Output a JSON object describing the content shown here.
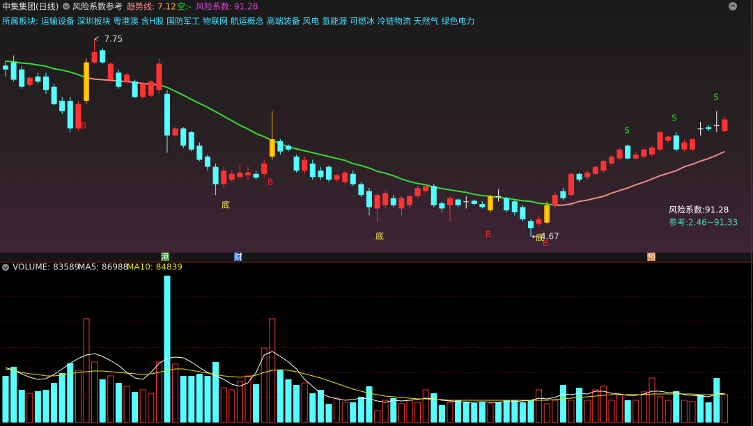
{
  "chart_data": {
    "type": "candlestick",
    "header": {
      "stock": "中集集团(日线)",
      "indicator": "风险系数参考",
      "trend_label": "趋势线:",
      "trend_value": 7.12,
      "short_label": "空:",
      "short_value": "-",
      "risk_label": "风险系数:",
      "risk_value": 91.28
    },
    "sectors": "所属板块: 运输设备 深圳板块 粤港澳 含H股 国防军工 物联网 航运概念 高端装备 风电 氢能源 可燃冰 冷链物流 天然气 绿色电力",
    "max_label": 7.75,
    "min_label": 4.67,
    "risk_panel": [
      "风险系数:91.28",
      "参考:2.46~91.33"
    ],
    "signals": [
      {
        "text": "B"
      },
      {
        "text": "B"
      },
      {
        "text": "B"
      },
      {
        "text": "B"
      },
      {
        "text": "底"
      },
      {
        "text": "底"
      },
      {
        "text": "底"
      },
      {
        "text": "S"
      },
      {
        "text": "S"
      },
      {
        "text": "S"
      }
    ],
    "axis_markers": [
      {
        "text": "港",
        "color": "#1e8c1e"
      },
      {
        "text": "财",
        "color": "#2060c0"
      },
      {
        "text": "预",
        "color": "#c86a1e"
      }
    ],
    "ylim": [
      4.43,
      7.93
    ],
    "up_color": "#ff3232",
    "down_color": "#54ffff",
    "highlight_color": "#ffcc00",
    "doji_color": "#ffffff",
    "highlight_candles": [
      10,
      33,
      60,
      67
    ],
    "candles": [
      [
        7.34,
        7.41,
        7.17,
        7.28
      ],
      [
        7.39,
        7.5,
        7.09,
        7.12
      ],
      [
        7.28,
        7.34,
        6.98,
        7.01
      ],
      [
        7.04,
        7.17,
        7.01,
        7.15
      ],
      [
        7.17,
        7.23,
        7.06,
        7.09
      ],
      [
        7.17,
        7.23,
        6.9,
        6.96
      ],
      [
        7.01,
        7.06,
        6.72,
        6.74
      ],
      [
        6.79,
        6.85,
        6.58,
        6.63
      ],
      [
        6.79,
        6.85,
        6.3,
        6.36
      ],
      [
        6.36,
        6.79,
        6.32,
        6.74
      ],
      [
        6.79,
        7.45,
        6.74,
        7.39
      ],
      [
        7.39,
        7.75,
        7.37,
        7.55
      ],
      [
        7.58,
        7.61,
        7.37,
        7.39
      ],
      [
        7.12,
        7.39,
        7.09,
        7.37
      ],
      [
        7.23,
        7.28,
        6.98,
        7.01
      ],
      [
        7.09,
        7.23,
        7.06,
        7.2
      ],
      [
        7.09,
        7.12,
        6.83,
        6.85
      ],
      [
        6.85,
        7.09,
        6.83,
        7.06
      ],
      [
        6.87,
        7.12,
        6.85,
        7.09
      ],
      [
        6.96,
        7.45,
        6.9,
        7.37
      ],
      [
        6.9,
        6.96,
        5.98,
        6.25
      ],
      [
        6.25,
        6.38,
        6.23,
        6.36
      ],
      [
        6.36,
        6.38,
        6.05,
        6.09
      ],
      [
        6.3,
        6.32,
        6.0,
        6.03
      ],
      [
        6.09,
        6.14,
        5.85,
        5.87
      ],
      [
        5.92,
        5.95,
        5.7,
        5.76
      ],
      [
        5.76,
        5.81,
        5.32,
        5.49
      ],
      [
        5.49,
        5.76,
        5.43,
        5.7
      ],
      [
        5.56,
        5.7,
        5.52,
        5.65
      ],
      [
        5.6,
        5.81,
        5.56,
        5.67
      ],
      [
        5.63,
        5.76,
        5.56,
        5.67
      ],
      [
        5.65,
        5.7,
        5.56,
        5.59
      ],
      [
        5.65,
        5.87,
        5.6,
        5.81
      ],
      [
        5.92,
        6.63,
        5.87,
        6.19
      ],
      [
        6.16,
        6.19,
        5.95,
        6.0
      ],
      [
        6.09,
        6.11,
        6.0,
        6.03
      ],
      [
        5.92,
        5.95,
        5.67,
        5.7
      ],
      [
        5.7,
        5.92,
        5.65,
        5.87
      ],
      [
        5.81,
        5.87,
        5.56,
        5.6
      ],
      [
        5.7,
        5.76,
        5.56,
        5.6
      ],
      [
        5.76,
        5.78,
        5.52,
        5.56
      ],
      [
        5.56,
        5.65,
        5.52,
        5.63
      ],
      [
        5.52,
        5.7,
        5.49,
        5.67
      ],
      [
        5.65,
        5.7,
        5.46,
        5.49
      ],
      [
        5.49,
        5.52,
        5.29,
        5.32
      ],
      [
        5.38,
        5.43,
        5.0,
        5.13
      ],
      [
        5.11,
        5.35,
        4.89,
        5.32
      ],
      [
        5.16,
        5.38,
        5.11,
        5.35
      ],
      [
        5.27,
        5.32,
        5.13,
        5.16
      ],
      [
        5.11,
        5.3,
        5.0,
        5.27
      ],
      [
        5.16,
        5.32,
        5.11,
        5.3
      ],
      [
        5.3,
        5.46,
        5.27,
        5.43
      ],
      [
        5.38,
        5.49,
        5.35,
        5.46
      ],
      [
        5.46,
        5.49,
        5.13,
        5.16
      ],
      [
        5.19,
        5.22,
        5.05,
        5.11
      ],
      [
        5.16,
        5.3,
        4.91,
        5.27
      ],
      [
        5.25,
        5.27,
        5.13,
        5.16
      ],
      [
        5.22,
        5.3,
        5.11,
        5.22
      ],
      [
        5.23,
        5.25,
        5.16,
        5.18
      ],
      [
        5.18,
        5.22,
        5.11,
        5.13
      ],
      [
        5.08,
        5.32,
        5.05,
        5.3
      ],
      [
        5.3,
        5.41,
        5.22,
        5.3
      ],
      [
        5.27,
        5.29,
        5.05,
        5.08
      ],
      [
        5.22,
        5.24,
        5.0,
        5.05
      ],
      [
        5.13,
        5.16,
        4.91,
        4.94
      ],
      [
        4.91,
        4.94,
        4.67,
        4.8
      ],
      [
        4.87,
        5.0,
        4.83,
        4.94
      ],
      [
        4.89,
        5.22,
        4.87,
        5.16
      ],
      [
        5.16,
        5.38,
        5.11,
        5.32
      ],
      [
        5.38,
        5.43,
        5.24,
        5.27
      ],
      [
        5.32,
        5.67,
        5.3,
        5.65
      ],
      [
        5.65,
        5.67,
        5.52,
        5.56
      ],
      [
        5.6,
        5.7,
        5.56,
        5.67
      ],
      [
        5.65,
        5.78,
        5.63,
        5.76
      ],
      [
        5.7,
        5.87,
        5.67,
        5.85
      ],
      [
        5.81,
        5.95,
        5.78,
        5.92
      ],
      [
        5.89,
        6.06,
        5.87,
        6.03
      ],
      [
        6.09,
        6.11,
        5.87,
        5.89
      ],
      [
        5.89,
        6.0,
        5.87,
        5.95
      ],
      [
        5.92,
        6.06,
        5.89,
        6.03
      ],
      [
        5.95,
        6.09,
        5.92,
        6.06
      ],
      [
        6.03,
        6.32,
        6.0,
        6.3
      ],
      [
        6.17,
        6.25,
        6.14,
        6.23
      ],
      [
        6.25,
        6.3,
        6.0,
        6.03
      ],
      [
        6.03,
        6.19,
        6.0,
        6.14
      ],
      [
        6.03,
        6.21,
        6.0,
        6.19
      ],
      [
        6.36,
        6.46,
        6.25,
        6.36
      ],
      [
        6.38,
        6.41,
        6.32,
        6.35
      ],
      [
        6.41,
        6.63,
        6.3,
        6.41
      ],
      [
        6.32,
        6.54,
        6.3,
        6.5
      ]
    ],
    "trend": [
      {
        "color": "#33dd33",
        "values": [
          7.41,
          7.4,
          7.38,
          7.37,
          7.35,
          7.33,
          7.29,
          7.27,
          7.24,
          7.2,
          7.15,
          null,
          null,
          null,
          null,
          null,
          null,
          null,
          null,
          7.04,
          7.0,
          6.94,
          6.88,
          6.81,
          6.75,
          6.69,
          6.62,
          6.55,
          6.48,
          6.41,
          6.35,
          6.28,
          6.23,
          6.17,
          6.12,
          6.07,
          6.04,
          6.01,
          5.98,
          5.95,
          5.92,
          5.89,
          5.86,
          5.81,
          5.78,
          5.74,
          5.69,
          5.66,
          5.62,
          5.57,
          5.53,
          5.5,
          5.48,
          5.44,
          5.42,
          5.4,
          5.38,
          5.36,
          5.33,
          5.31,
          5.3,
          5.28,
          5.27,
          5.25,
          5.23,
          5.22,
          5.19,
          5.18,
          5.16,
          null,
          null,
          null,
          null,
          null,
          null,
          null,
          null,
          null,
          null,
          null,
          null,
          null,
          null,
          null,
          null,
          null,
          null,
          null,
          null,
          null
        ]
      },
      {
        "color": "#f08c8c",
        "values": [
          null,
          null,
          null,
          null,
          null,
          null,
          null,
          null,
          null,
          null,
          7.15,
          7.13,
          7.12,
          7.11,
          7.1,
          7.09,
          7.08,
          7.06,
          7.05,
          7.04,
          null,
          null,
          null,
          null,
          null,
          null,
          null,
          null,
          null,
          null,
          null,
          null,
          null,
          null,
          null,
          null,
          null,
          null,
          null,
          null,
          null,
          null,
          null,
          null,
          null,
          null,
          null,
          null,
          null,
          null,
          null,
          null,
          null,
          null,
          null,
          null,
          null,
          null,
          null,
          null,
          null,
          null,
          null,
          null,
          null,
          null,
          null,
          null,
          5.16,
          5.16,
          5.18,
          5.22,
          5.24,
          5.27,
          5.3,
          5.35,
          5.39,
          5.43,
          5.48,
          5.52,
          5.57,
          5.62,
          5.66,
          5.7,
          5.76,
          5.8,
          5.85,
          5.89,
          5.94,
          6.0
        ]
      }
    ],
    "volume_header": [
      "VOLUME: 83589",
      "MA5: 86988",
      "MA10: 84839"
    ],
    "volume_ylim": [
      0,
      450000
    ],
    "volume_yticks": [
      75000,
      150000,
      225000,
      300000,
      375000
    ],
    "volume": [
      139000,
      166000,
      97500,
      87100,
      93300,
      97500,
      118200,
      147300,
      176300,
      155600,
      309000,
      180400,
      128600,
      139000,
      118200,
      107800,
      91300,
      97500,
      87100,
      180400,
      437600,
      174200,
      139000,
      139000,
      145200,
      139000,
      180400,
      103700,
      97500,
      122400,
      139000,
      114100,
      221900,
      309000,
      155600,
      128600,
      112000,
      118200,
      87100,
      97500,
      56000,
      72600,
      60100,
      60100,
      76700,
      107800,
      35300,
      66400,
      72600,
      56000,
      66400,
      60100,
      97500,
      87100,
      51900,
      60100,
      66400,
      62200,
      58100,
      60100,
      56000,
      60100,
      66400,
      66400,
      60100,
      66400,
      97500,
      56000,
      66400,
      112000,
      66400,
      103700,
      66400,
      97500,
      107800,
      66400,
      83000,
      66400,
      66400,
      91300,
      132700,
      76700,
      66400,
      93300,
      66400,
      62200,
      83000,
      60100,
      132700,
      83589
    ],
    "volume_ma": [
      {
        "color": "#ffffff",
        "values": [
          163800,
          155600,
          145200,
          134800,
          128600,
          130700,
          143100,
          159700,
          176300,
          190800,
          201200,
          205300,
          197000,
          184600,
          170100,
          149300,
          132700,
          128600,
          149300,
          176300,
          190800,
          195000,
          192900,
          180400,
          163800,
          149300,
          139000,
          128600,
          114100,
          107800,
          118200,
          149300,
          201200,
          211500,
          197000,
          180400,
          159700,
          128600,
          107800,
          87100,
          76700,
          70500,
          66400,
          68400,
          72600,
          70500,
          64300,
          60100,
          66400,
          64300,
          66400,
          68400,
          72600,
          70500,
          66400,
          64300,
          62200,
          60100,
          60100,
          62200,
          60100,
          60100,
          62200,
          62200,
          64300,
          66400,
          72600,
          70500,
          74700,
          85000,
          83000,
          87100,
          85000,
          93300,
          93300,
          87100,
          85000,
          80900,
          80900,
          85000,
          93300,
          93300,
          89200,
          89200,
          83000,
          80900,
          78800,
          76700,
          85000,
          86988
        ]
      },
      {
        "color": "#e6e600",
        "values": [
          159700,
          155600,
          149300,
          145200,
          143100,
          139000,
          139000,
          141000,
          145200,
          149300,
          151400,
          153500,
          153500,
          151400,
          149300,
          147300,
          145200,
          143100,
          145200,
          149300,
          155600,
          159700,
          159700,
          155600,
          151400,
          147300,
          143100,
          139000,
          136900,
          134800,
          136900,
          141000,
          149300,
          155600,
          157600,
          155600,
          151400,
          145200,
          139000,
          132700,
          124400,
          116100,
          107800,
          99600,
          93300,
          87100,
          83000,
          78800,
          76700,
          74700,
          72600,
          70500,
          70500,
          68400,
          68400,
          66400,
          66400,
          66400,
          66400,
          66400,
          66400,
          66400,
          66400,
          66400,
          66400,
          66400,
          66400,
          66400,
          68400,
          70500,
          72600,
          74700,
          76700,
          78800,
          80900,
          83000,
          83000,
          83000,
          83000,
          83000,
          85000,
          85000,
          85000,
          85000,
          85000,
          85000,
          83000,
          83000,
          83000,
          84839
        ]
      }
    ]
  }
}
